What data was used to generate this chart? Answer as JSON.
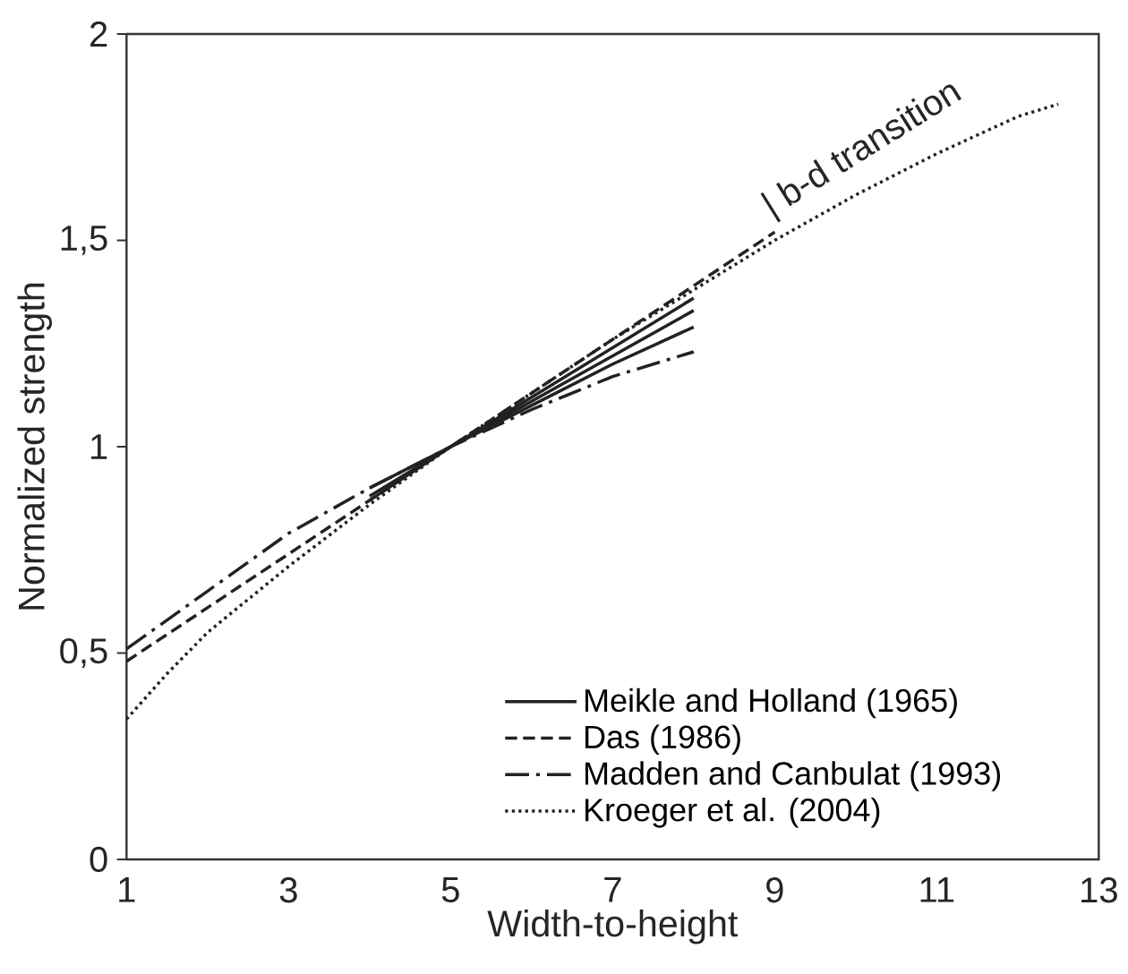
{
  "chart_data": {
    "type": "line",
    "xlabel": "Width-to-height",
    "ylabel": "Normalized strength",
    "xlim": [
      1,
      13
    ],
    "xticks": [
      1,
      3,
      5,
      7,
      9,
      11,
      13
    ],
    "ylim": [
      0,
      2
    ],
    "yticks": [
      0,
      {
        "value": 0.5,
        "label": "0,5"
      },
      1,
      {
        "value": 1.5,
        "label": "1,5"
      },
      2
    ],
    "grid": false,
    "legend": "bottom right",
    "annotations": [
      {
        "text": "| b-d transition",
        "x": 9,
        "y": 1.53
      }
    ],
    "series": [
      {
        "name": "Meikle and Holland (1965)",
        "color": "#222222",
        "line_style": "solid",
        "x": [
          4,
          5,
          6,
          7,
          8
        ],
        "values": [
          0.87,
          1.0,
          1.12,
          1.24,
          1.36
        ]
      },
      {
        "color": "#222222",
        "line_style": "solid",
        "x": [
          4,
          5,
          6,
          7,
          8
        ],
        "values": [
          0.88,
          1.0,
          1.11,
          1.22,
          1.33
        ]
      },
      {
        "color": "#222222",
        "line_style": "solid",
        "x": [
          4,
          5,
          6,
          7,
          8
        ],
        "values": [
          0.9,
          1.0,
          1.1,
          1.2,
          1.29
        ]
      },
      {
        "name": "Das (1986)",
        "color": "#222222",
        "line_style": "dashed",
        "x": [
          1,
          2,
          3,
          4,
          5,
          6,
          7,
          8,
          9
        ],
        "values": [
          0.48,
          0.61,
          0.74,
          0.87,
          1.0,
          1.13,
          1.26,
          1.39,
          1.52
        ]
      },
      {
        "name": "Madden and Canbulat (1993)",
        "color": "#222222",
        "line_style": "dashdot",
        "x": [
          1,
          2,
          3,
          4,
          5,
          6,
          7,
          8
        ],
        "values": [
          0.51,
          0.65,
          0.79,
          0.9,
          1.0,
          1.09,
          1.17,
          1.23
        ]
      },
      {
        "name": "Kroeger et al. (2004)",
        "color": "#222222",
        "line_style": "dotted",
        "x": [
          1,
          1.5,
          2,
          3,
          4,
          5,
          6,
          7,
          8,
          9,
          10,
          11,
          12,
          12.5
        ],
        "values": [
          0.34,
          0.45,
          0.55,
          0.71,
          0.86,
          1.0,
          1.13,
          1.26,
          1.38,
          1.5,
          1.61,
          1.71,
          1.8,
          1.83
        ]
      }
    ]
  }
}
